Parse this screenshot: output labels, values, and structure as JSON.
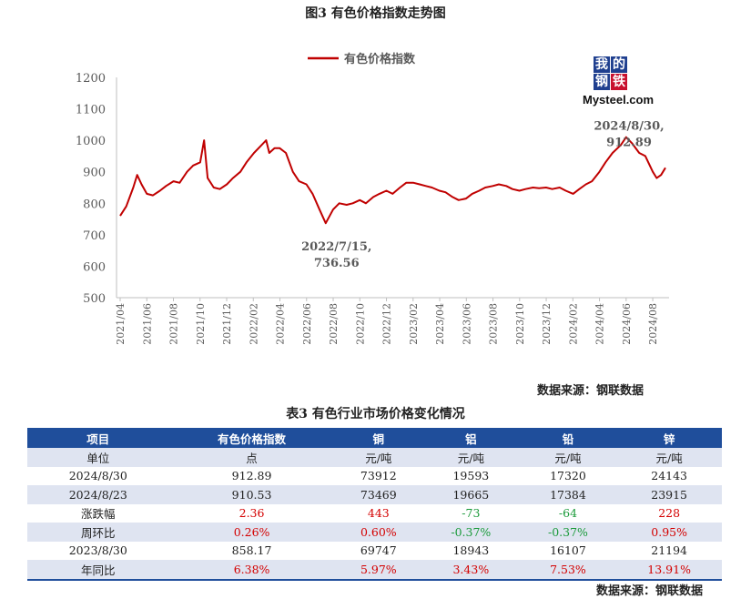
{
  "figure_title": "图3  有色价格指数走势图",
  "logo": {
    "chars": [
      "我",
      "的",
      "钢",
      "铁"
    ],
    "brand": "Mysteel.com"
  },
  "chart_source": "数据来源：钢联数据",
  "chart_data": {
    "type": "line",
    "title": "",
    "xlabel": "",
    "ylabel": "",
    "ylim": [
      500,
      1200
    ],
    "y_ticks": [
      500,
      600,
      700,
      800,
      900,
      1000,
      1100,
      1200
    ],
    "x_ticks": [
      "2021/04",
      "2021/06",
      "2021/08",
      "2021/10",
      "2021/12",
      "2022/02",
      "2022/04",
      "2022/06",
      "2022/08",
      "2022/10",
      "2022/12",
      "2023/02",
      "2023/04",
      "2023/06",
      "2023/08",
      "2023/10",
      "2023/12",
      "2024/02",
      "2024/04",
      "2024/06",
      "2024/08"
    ],
    "legend": "top-center",
    "grid": false,
    "series": [
      {
        "name": "有色价格指数",
        "color": "#c00000",
        "x": [
          "2021/04/01",
          "2021/04/15",
          "2021/05/01",
          "2021/05/10",
          "2021/05/20",
          "2021/06/01",
          "2021/06/15",
          "2021/07/01",
          "2021/07/15",
          "2021/08/01",
          "2021/08/15",
          "2021/09/01",
          "2021/09/15",
          "2021/10/01",
          "2021/10/10",
          "2021/10/18",
          "2021/11/01",
          "2021/11/15",
          "2021/12/01",
          "2021/12/15",
          "2022/01/01",
          "2022/01/15",
          "2022/02/01",
          "2022/02/15",
          "2022/03/01",
          "2022/03/08",
          "2022/03/20",
          "2022/04/01",
          "2022/04/15",
          "2022/05/01",
          "2022/05/15",
          "2022/06/01",
          "2022/06/15",
          "2022/07/01",
          "2022/07/15",
          "2022/08/01",
          "2022/08/15",
          "2022/09/01",
          "2022/09/15",
          "2022/10/01",
          "2022/10/15",
          "2022/11/01",
          "2022/11/15",
          "2022/12/01",
          "2022/12/15",
          "2023/01/01",
          "2023/01/15",
          "2023/02/01",
          "2023/02/15",
          "2023/03/01",
          "2023/03/15",
          "2023/04/01",
          "2023/04/15",
          "2023/05/01",
          "2023/05/15",
          "2023/06/01",
          "2023/06/15",
          "2023/07/01",
          "2023/07/15",
          "2023/08/01",
          "2023/08/15",
          "2023/09/01",
          "2023/09/15",
          "2023/10/01",
          "2023/10/15",
          "2023/11/01",
          "2023/11/15",
          "2023/12/01",
          "2023/12/15",
          "2024/01/01",
          "2024/01/15",
          "2024/02/01",
          "2024/02/15",
          "2024/03/01",
          "2024/03/15",
          "2024/04/01",
          "2024/04/15",
          "2024/05/01",
          "2024/05/20",
          "2024/06/01",
          "2024/06/15",
          "2024/07/01",
          "2024/07/15",
          "2024/08/01",
          "2024/08/10",
          "2024/08/20",
          "2024/08/30"
        ],
        "values": [
          760,
          790,
          850,
          890,
          860,
          830,
          825,
          840,
          855,
          870,
          865,
          900,
          920,
          930,
          1000,
          880,
          850,
          845,
          860,
          880,
          900,
          930,
          960,
          980,
          1000,
          960,
          975,
          975,
          960,
          900,
          870,
          860,
          830,
          780,
          736.56,
          780,
          800,
          795,
          800,
          810,
          800,
          820,
          830,
          840,
          830,
          850,
          865,
          865,
          860,
          855,
          850,
          840,
          835,
          820,
          810,
          815,
          830,
          840,
          850,
          855,
          860,
          855,
          845,
          840,
          845,
          850,
          848,
          850,
          845,
          850,
          840,
          830,
          845,
          860,
          870,
          900,
          930,
          960,
          985,
          1010,
          990,
          960,
          950,
          900,
          880,
          890,
          912.89
        ]
      }
    ],
    "annotations": [
      {
        "x": "2022/07/15",
        "lines": [
          "2022/7/15,",
          "736.56"
        ]
      },
      {
        "x": "2024/08/30",
        "lines": [
          "2024/8/30,",
          "912.89"
        ]
      }
    ]
  },
  "table": {
    "title": "表3 有色行业市场价格变化情况",
    "headers": [
      "项目",
      "有色价格指数",
      "铜",
      "铝",
      "铅",
      "锌"
    ],
    "rows": [
      [
        "单位",
        "点",
        "元/吨",
        "元/吨",
        "元/吨",
        "元/吨"
      ],
      [
        "2024/8/30",
        "912.89",
        "73912",
        "19593",
        "17320",
        "24143"
      ],
      [
        "2024/8/23",
        "910.53",
        "73469",
        "19665",
        "17384",
        "23915"
      ],
      [
        "涨跌幅",
        "2.36",
        "443",
        "-73",
        "-64",
        "228"
      ],
      [
        "周环比",
        "0.26%",
        "0.60%",
        "-0.37%",
        "-0.37%",
        "0.95%"
      ],
      [
        "2023/8/30",
        "858.17",
        "69747",
        "18943",
        "16107",
        "21194"
      ],
      [
        "年同比",
        "6.38%",
        "5.97%",
        "3.43%",
        "7.53%",
        "13.91%"
      ]
    ],
    "colored_rows": [
      3,
      4,
      6
    ],
    "positive_color": "#d40000",
    "negative_color": "#1a9a3a",
    "header_color": "#1f4e9b",
    "stripe_color": "#dfe4f1"
  },
  "table_source": "数据来源：钢联数据"
}
